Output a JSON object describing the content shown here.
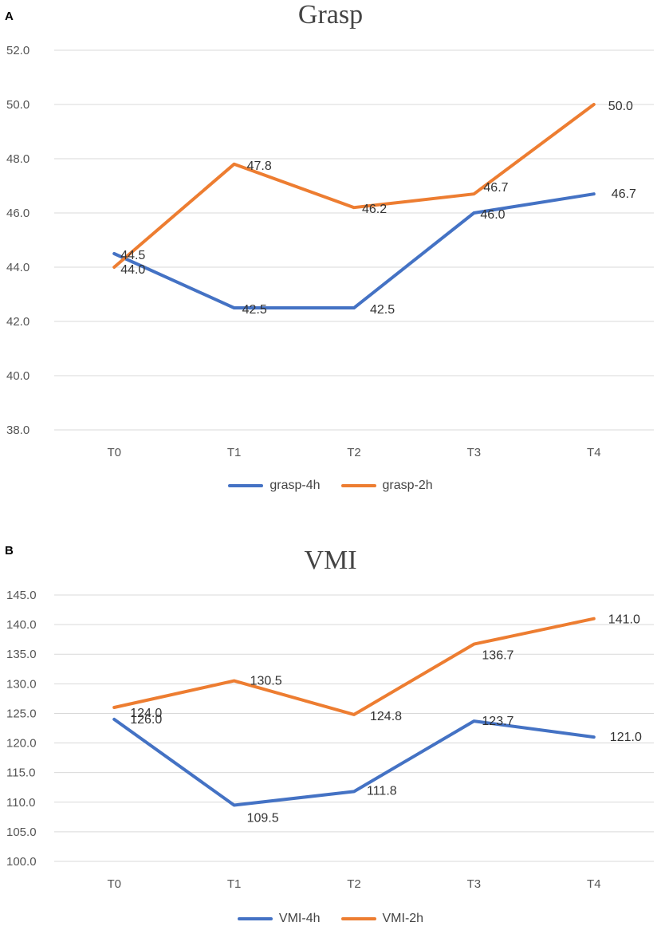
{
  "chart_data": [
    {
      "type": "line",
      "panel_label": "A",
      "title": "Grasp",
      "categories": [
        "T0",
        "T1",
        "T2",
        "T3",
        "T4"
      ],
      "ylim": [
        38.0,
        52.0
      ],
      "yticks": [
        "38.0",
        "40.0",
        "42.0",
        "44.0",
        "46.0",
        "48.0",
        "50.0",
        "52.0"
      ],
      "grid": true,
      "legend_position": "bottom",
      "series": [
        {
          "name": "grasp-4h",
          "color": "#4472C4",
          "values": [
            44.5,
            42.5,
            42.5,
            46.0,
            46.7
          ],
          "labels": [
            "44.5",
            "42.5",
            "42.5",
            "46.0",
            "46.7"
          ]
        },
        {
          "name": "grasp-2h",
          "color": "#ED7D31",
          "values": [
            44.0,
            47.8,
            46.2,
            46.7,
            50.0
          ],
          "labels": [
            "44.0",
            "47.8",
            "46.2",
            "46.7",
            "50.0"
          ]
        }
      ]
    },
    {
      "type": "line",
      "panel_label": "B",
      "title": "VMI",
      "categories": [
        "T0",
        "T1",
        "T2",
        "T3",
        "T4"
      ],
      "ylim": [
        100.0,
        145.0
      ],
      "yticks": [
        "100.0",
        "105.0",
        "110.0",
        "115.0",
        "120.0",
        "125.0",
        "130.0",
        "135.0",
        "140.0",
        "145.0"
      ],
      "grid": true,
      "legend_position": "bottom",
      "series": [
        {
          "name": "VMI-4h",
          "color": "#4472C4",
          "values": [
            124.0,
            109.5,
            111.8,
            123.7,
            121.0
          ],
          "labels": [
            "124.0",
            "109.5",
            "111.8",
            "123.7",
            "121.0"
          ]
        },
        {
          "name": "VMI-2h",
          "color": "#ED7D31",
          "values": [
            126.0,
            130.5,
            124.8,
            136.7,
            141.0
          ],
          "labels": [
            "126.0",
            "130.5",
            "124.8",
            "136.7",
            "141.0"
          ]
        }
      ]
    }
  ]
}
